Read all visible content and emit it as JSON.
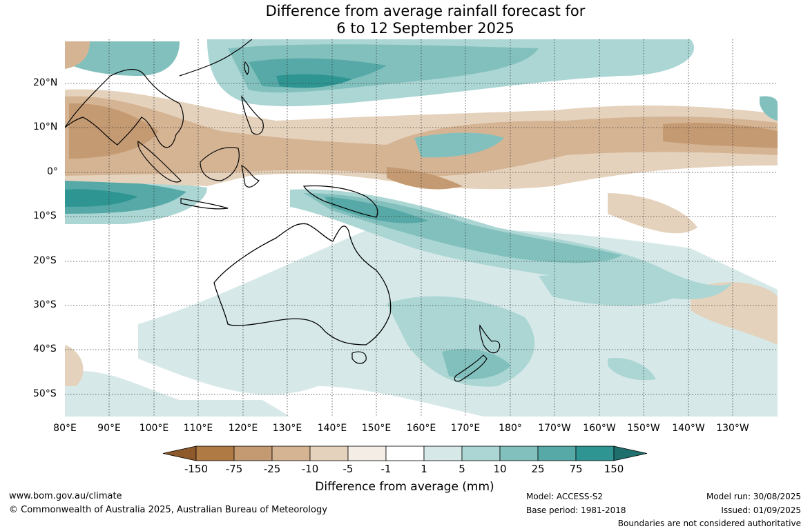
{
  "title": {
    "line1": "Difference from average rainfall forecast for",
    "line2": "6 to 12 September 2025"
  },
  "map": {
    "lat_labels": [
      "20°N",
      "10°N",
      "0°",
      "10°S",
      "20°S",
      "30°S",
      "40°S",
      "50°S"
    ],
    "lon_labels": [
      "80°E",
      "90°E",
      "100°E",
      "110°E",
      "120°E",
      "130°E",
      "140°E",
      "150°E",
      "160°E",
      "170°E",
      "180°",
      "170°W",
      "160°W",
      "150°W",
      "140°W",
      "130°W"
    ]
  },
  "colorbar": {
    "labels": [
      "-150",
      "-75",
      "-25",
      "-10",
      "-5",
      "-1",
      "1",
      "5",
      "10",
      "25",
      "75",
      "150"
    ],
    "colors": [
      "#8e5a2b",
      "#b07a45",
      "#c49a72",
      "#d5b494",
      "#e5d2bd",
      "#f4ede6",
      "#ffffff",
      "#d6e9e8",
      "#abd6d4",
      "#82c0bd",
      "#56a9a6",
      "#2f9592",
      "#1f6f6c"
    ],
    "title": "Difference from average (mm)"
  },
  "footer": {
    "url": "www.bom.gov.au/climate",
    "copyright": "© Commonwealth of Australia 2025, Australian Bureau of Meteorology",
    "model": "Model: ACCESS-S2",
    "base_period": "Base period: 1981-2018",
    "model_run": "Model run: 30/08/2025",
    "issued": "Issued: 01/09/2025",
    "disclaimer": "Boundaries are not considered authoritative"
  }
}
